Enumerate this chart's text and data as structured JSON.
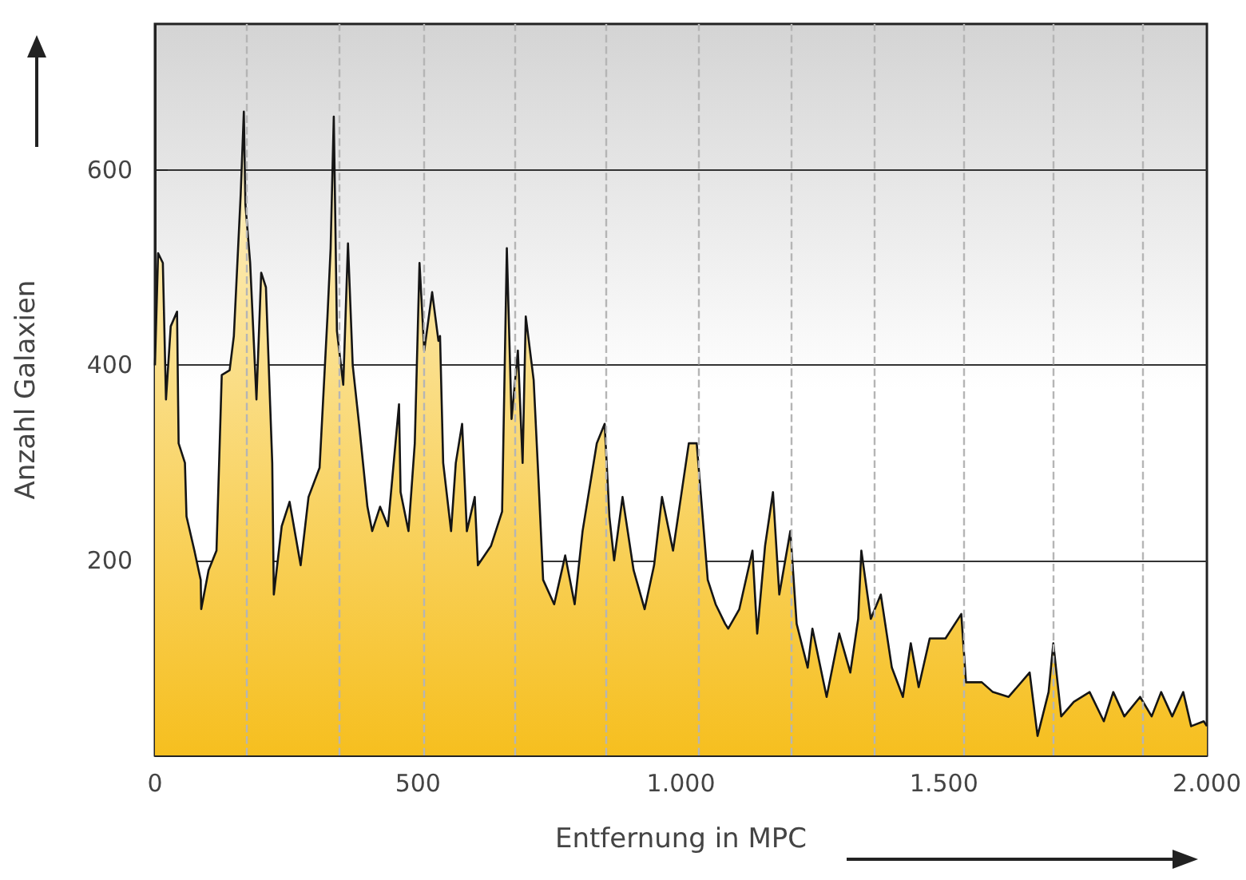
{
  "chart_data": {
    "type": "area",
    "xlabel": "Entfernung in MPC",
    "ylabel": "Anzahl Galaxien",
    "xlim": [
      0,
      2000
    ],
    "ylim": [
      0,
      750
    ],
    "xticks": [
      0,
      500,
      {
        "value": 1000,
        "label": "1.000"
      },
      {
        "value": 1500,
        "label": "1.500"
      },
      {
        "value": 2000,
        "label": "2.000"
      }
    ],
    "yticks": [
      200,
      400,
      600
    ],
    "grid": "y",
    "marker": "none",
    "line_style": "solid",
    "ref_lines": [
      {
        "axis": "x",
        "value": 175,
        "line_style": "dashed",
        "color": "#b5b5b5"
      },
      {
        "axis": "x",
        "value": 349,
        "line_style": "dashed",
        "color": "#b5b5b5"
      },
      {
        "axis": "x",
        "value": 512,
        "line_style": "dashed",
        "color": "#b5b5b5"
      },
      {
        "axis": "x",
        "value": 684,
        "line_style": "dashed",
        "color": "#b5b5b5"
      },
      {
        "axis": "x",
        "value": 858,
        "line_style": "dashed",
        "color": "#b5b5b5"
      },
      {
        "axis": "x",
        "value": 1033,
        "line_style": "dashed",
        "color": "#b5b5b5"
      },
      {
        "axis": "x",
        "value": 1208,
        "line_style": "dashed",
        "color": "#b5b5b5"
      },
      {
        "axis": "x",
        "value": 1367,
        "line_style": "dashed",
        "color": "#b5b5b5"
      },
      {
        "axis": "x",
        "value": 1539,
        "line_style": "dashed",
        "color": "#b5b5b5"
      },
      {
        "axis": "x",
        "value": 1708,
        "line_style": "dashed",
        "color": "#b5b5b5"
      },
      {
        "axis": "x",
        "value": 1877,
        "line_style": "dashed",
        "color": "#b5b5b5"
      }
    ],
    "series": [
      {
        "color": "#f6bf1f",
        "x": [
          0,
          6,
          15,
          21,
          30,
          42,
          45,
          57,
          60,
          75,
          87,
          88,
          102,
          117,
          127,
          142,
          150,
          163,
          169,
          172,
          181,
          193,
          202,
          211,
          223,
          226,
          241,
          256,
          277,
          292,
          313,
          328,
          334,
          340,
          346,
          358,
          367,
          376,
          388,
          404,
          413,
          428,
          443,
          464,
          467,
          482,
          494,
          503,
          512,
          527,
          539,
          542,
          548,
          563,
          572,
          584,
          593,
          608,
          614,
          639,
          660,
          669,
          678,
          690,
          699,
          705,
          720,
          729,
          738,
          759,
          780,
          798,
          813,
          840,
          855,
          864,
          873,
          889,
          910,
          931,
          949,
          964,
          985,
          1000,
          1015,
          1030,
          1039,
          1051,
          1066,
          1084,
          1090,
          1111,
          1136,
          1145,
          1160,
          1175,
          1187,
          1208,
          1220,
          1241,
          1250,
          1277,
          1301,
          1322,
          1337,
          1343,
          1361,
          1380,
          1401,
          1422,
          1437,
          1452,
          1473,
          1503,
          1533,
          1542,
          1572,
          1593,
          1623,
          1663,
          1678,
          1699,
          1708,
          1723,
          1747,
          1777,
          1804,
          1822,
          1843,
          1873,
          1895,
          1913,
          1934,
          1955,
          1970,
          1994,
          2000
        ],
        "values": [
          400,
          515,
          505,
          365,
          440,
          455,
          320,
          300,
          245,
          210,
          180,
          150,
          190,
          210,
          390,
          395,
          430,
          575,
          660,
          565,
          505,
          365,
          495,
          480,
          300,
          165,
          235,
          260,
          195,
          265,
          295,
          450,
          520,
          655,
          435,
          380,
          525,
          400,
          340,
          255,
          230,
          255,
          235,
          360,
          270,
          230,
          320,
          505,
          415,
          475,
          425,
          430,
          300,
          230,
          300,
          340,
          230,
          265,
          195,
          215,
          250,
          520,
          345,
          415,
          300,
          450,
          385,
          285,
          180,
          155,
          205,
          155,
          230,
          320,
          340,
          245,
          200,
          265,
          190,
          150,
          195,
          265,
          210,
          265,
          320,
          320,
          260,
          180,
          155,
          135,
          130,
          150,
          210,
          125,
          215,
          270,
          165,
          230,
          135,
          90,
          130,
          60,
          125,
          85,
          140,
          210,
          140,
          165,
          90,
          60,
          115,
          70,
          120,
          120,
          145,
          75,
          75,
          65,
          60,
          85,
          20,
          65,
          115,
          40,
          55,
          65,
          35,
          65,
          40,
          60,
          40,
          65,
          40,
          65,
          30,
          35,
          30
        ]
      }
    ]
  }
}
